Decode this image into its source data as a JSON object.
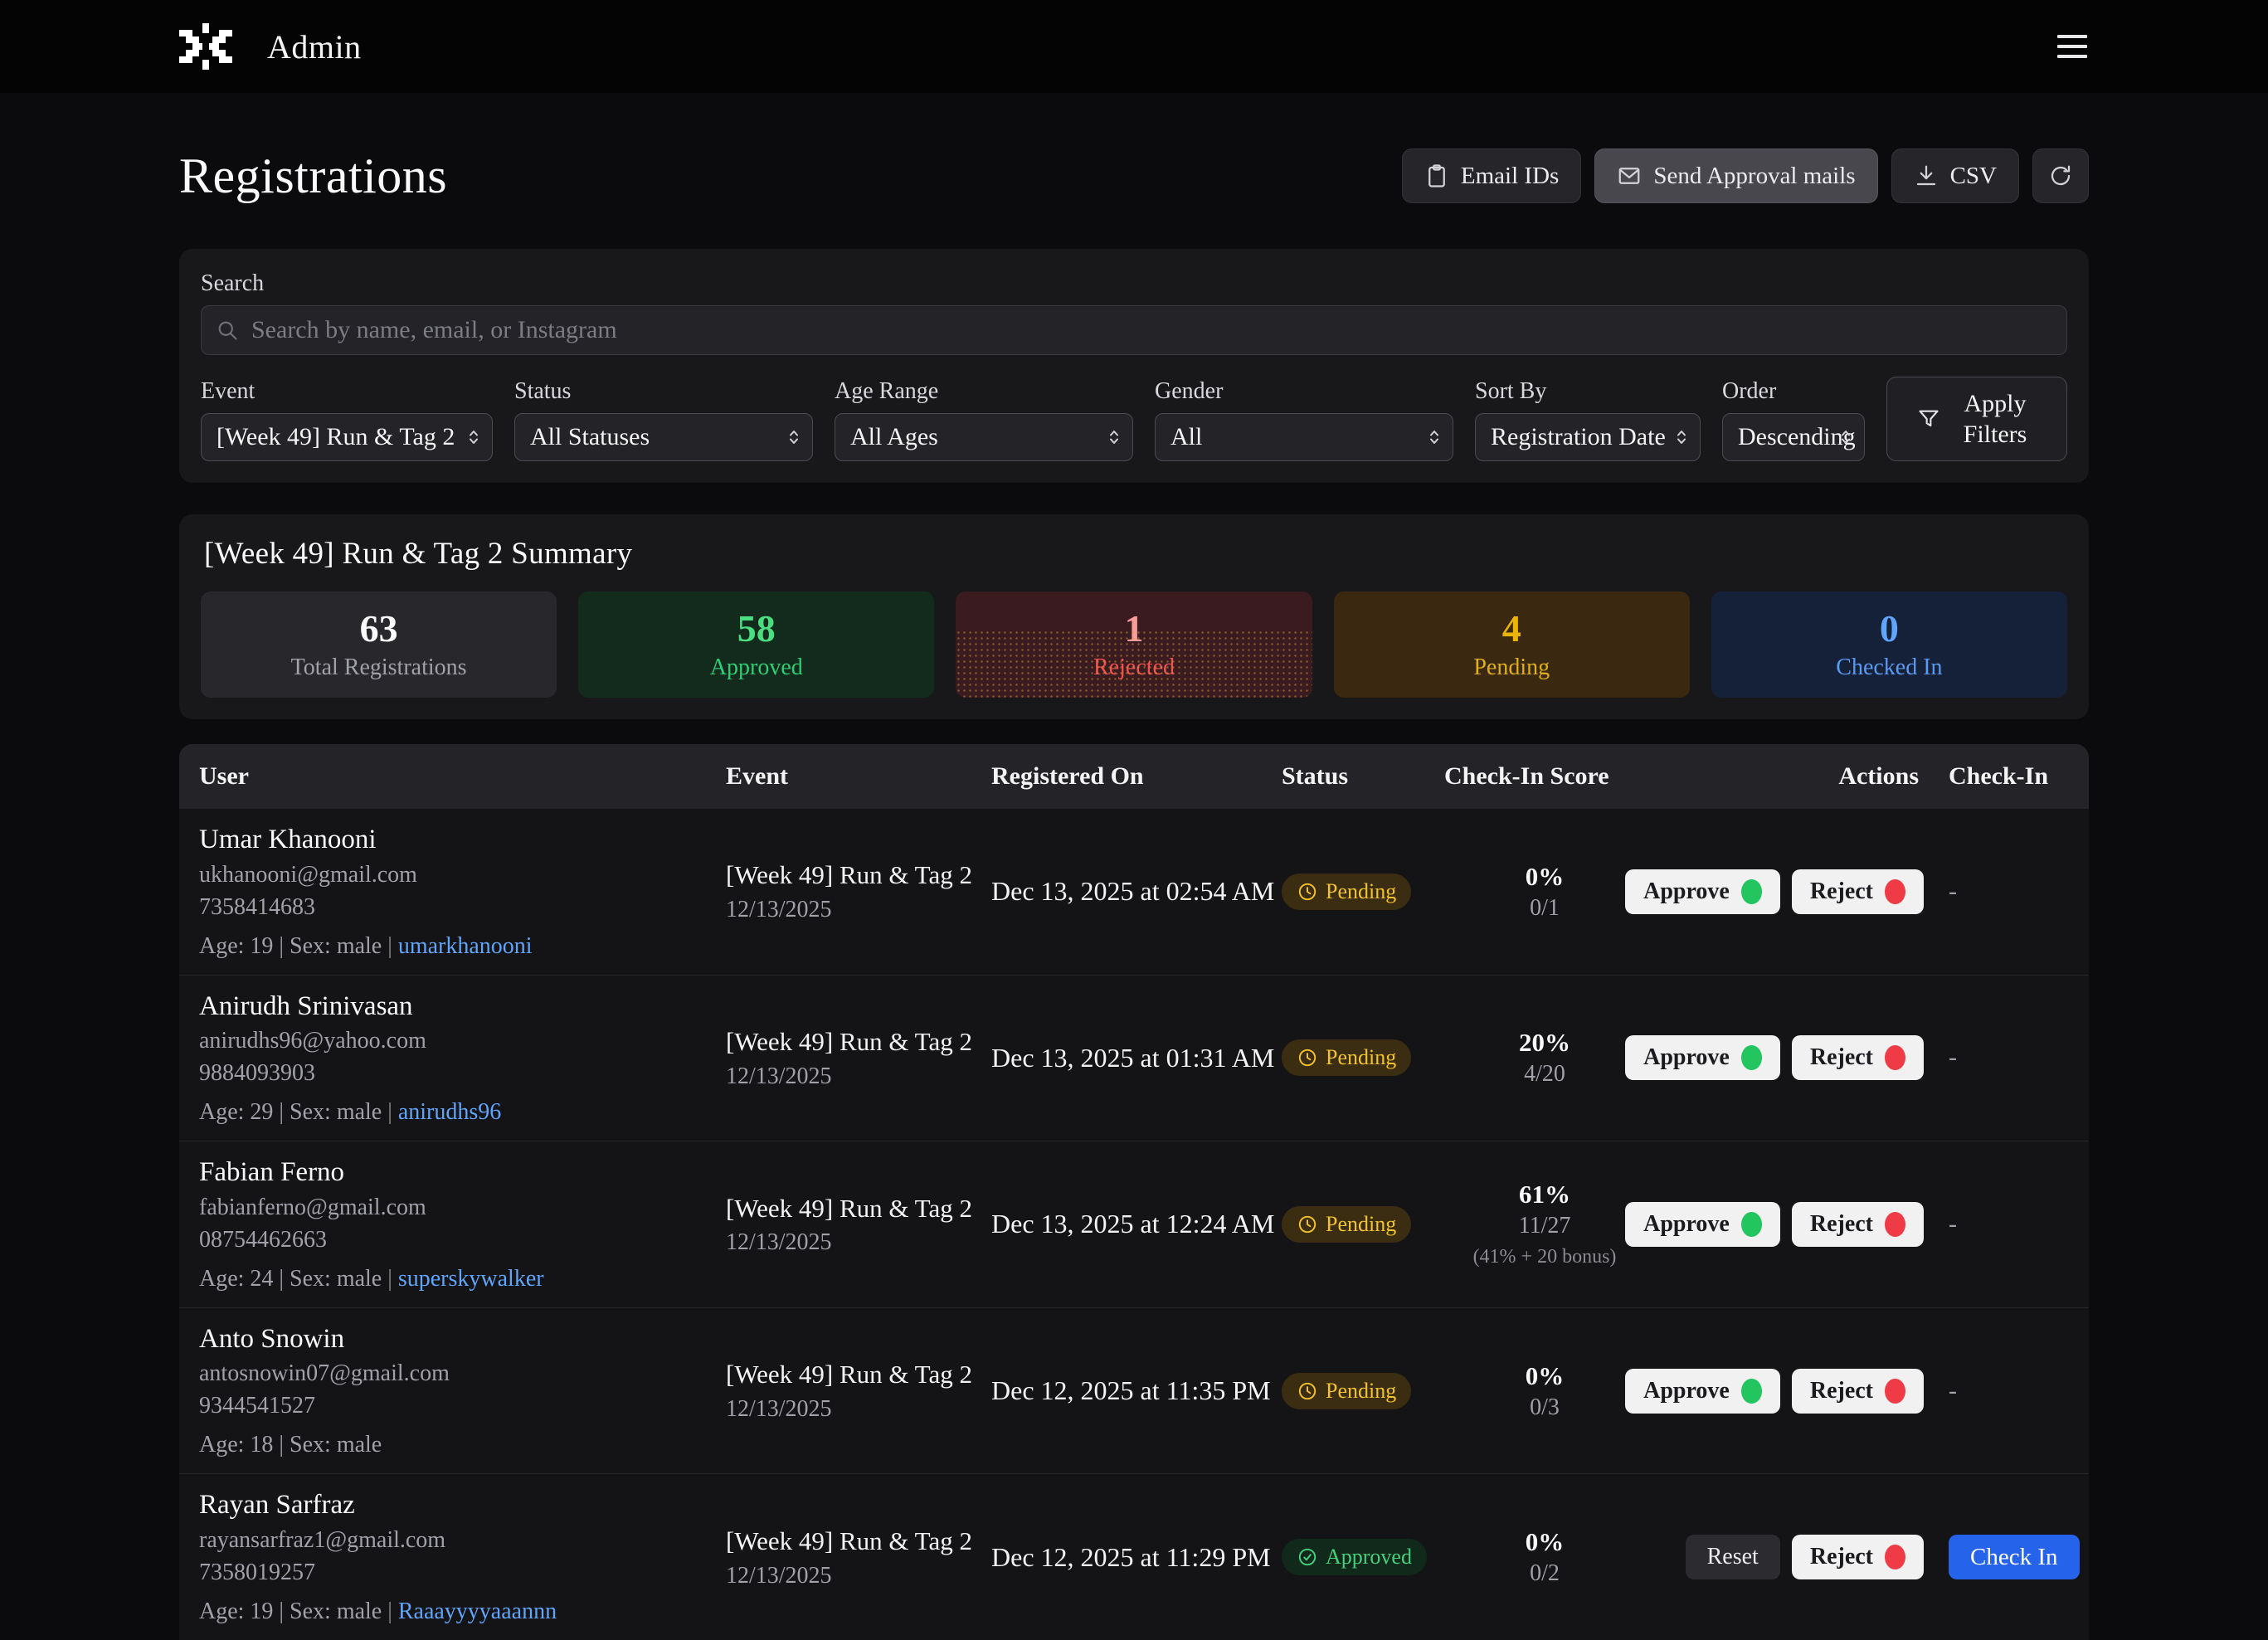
{
  "topbar": {
    "brand": "Admin"
  },
  "page": {
    "title": "Registrations"
  },
  "toolbar": {
    "email_ids": "Email IDs",
    "send_approval": "Send Approval mails",
    "csv": "CSV"
  },
  "filters": {
    "search_label": "Search",
    "search_placeholder": "Search by name, email, or Instagram",
    "fields": [
      {
        "id": "event",
        "label": "Event",
        "value": "[Week 49] Run & Tag 2"
      },
      {
        "id": "status",
        "label": "Status",
        "value": "All Statuses"
      },
      {
        "id": "age-range",
        "label": "Age Range",
        "value": "All Ages"
      },
      {
        "id": "gender",
        "label": "Gender",
        "value": "All"
      },
      {
        "id": "sort-by",
        "label": "Sort By",
        "value": "Registration Date"
      },
      {
        "id": "order",
        "label": "Order",
        "value": "Descending"
      }
    ],
    "apply_label": "Apply Filters"
  },
  "summary": {
    "title": "[Week 49] Run & Tag 2 Summary",
    "cards": [
      {
        "kind": "total",
        "value": "63",
        "label": "Total Registrations"
      },
      {
        "kind": "approved",
        "value": "58",
        "label": "Approved"
      },
      {
        "kind": "rejected",
        "value": "1",
        "label": "Rejected"
      },
      {
        "kind": "pending",
        "value": "4",
        "label": "Pending"
      },
      {
        "kind": "checkedin",
        "value": "0",
        "label": "Checked In"
      }
    ]
  },
  "table": {
    "headers": [
      "User",
      "Event",
      "Registered On",
      "Status",
      "Check-In Score",
      "Actions",
      "Check-In"
    ],
    "action_labels": {
      "approve": "Approve",
      "reject": "Reject",
      "reset": "Reset",
      "check_in": "Check In"
    },
    "status_labels": {
      "pending": "Pending",
      "approved": "Approved"
    },
    "rows": [
      {
        "name": "Umar Khanooni",
        "email": "ukhanooni@gmail.com",
        "phone": "7358414683",
        "meta": "Age: 19 | Sex: male",
        "instagram": "umarkhanooni",
        "event": "[Week 49] Run & Tag 2",
        "event_date": "12/13/2025",
        "registered": "Dec 13, 2025 at 02:54 AM",
        "status": "pending",
        "score_pct": "0%",
        "score_frac": "0/1",
        "score_note": "",
        "actions": [
          "approve",
          "reject"
        ],
        "checkin_text": "-",
        "checkin_button": false
      },
      {
        "name": "Anirudh Srinivasan",
        "email": "anirudhs96@yahoo.com",
        "phone": "9884093903",
        "meta": "Age: 29 | Sex: male",
        "instagram": "anirudhs96",
        "event": "[Week 49] Run & Tag 2",
        "event_date": "12/13/2025",
        "registered": "Dec 13, 2025 at 01:31 AM",
        "status": "pending",
        "score_pct": "20%",
        "score_frac": "4/20",
        "score_note": "",
        "actions": [
          "approve",
          "reject"
        ],
        "checkin_text": "-",
        "checkin_button": false
      },
      {
        "name": "Fabian Ferno",
        "email": "fabianferno@gmail.com",
        "phone": "08754462663",
        "meta": "Age: 24 | Sex: male",
        "instagram": "superskywalker",
        "event": "[Week 49] Run & Tag 2",
        "event_date": "12/13/2025",
        "registered": "Dec 13, 2025 at 12:24 AM",
        "status": "pending",
        "score_pct": "61%",
        "score_frac": "11/27",
        "score_note": "(41% + 20 bonus)",
        "actions": [
          "approve",
          "reject"
        ],
        "checkin_text": "-",
        "checkin_button": false
      },
      {
        "name": "Anto Snowin",
        "email": "antosnowin07@gmail.com",
        "phone": "9344541527",
        "meta": "Age: 18 | Sex: male",
        "instagram": "",
        "event": "[Week 49] Run & Tag 2",
        "event_date": "12/13/2025",
        "registered": "Dec 12, 2025 at 11:35 PM",
        "status": "pending",
        "score_pct": "0%",
        "score_frac": "0/3",
        "score_note": "",
        "actions": [
          "approve",
          "reject"
        ],
        "checkin_text": "-",
        "checkin_button": false
      },
      {
        "name": "Rayan Sarfraz",
        "email": "rayansarfraz1@gmail.com",
        "phone": "7358019257",
        "meta": "Age: 19 | Sex: male",
        "instagram": "Raaayyyyaaannn",
        "event": "[Week 49] Run & Tag 2",
        "event_date": "12/13/2025",
        "registered": "Dec 12, 2025 at 11:29 PM",
        "status": "approved",
        "score_pct": "0%",
        "score_frac": "0/2",
        "score_note": "",
        "actions": [
          "reset",
          "reject"
        ],
        "checkin_text": "",
        "checkin_button": true
      }
    ]
  },
  "colors": {
    "accent_blue": "#2563eb",
    "green": "#22c55e",
    "red": "#ef3b46",
    "yellow": "#eab308",
    "link_blue": "#60a5fa"
  }
}
